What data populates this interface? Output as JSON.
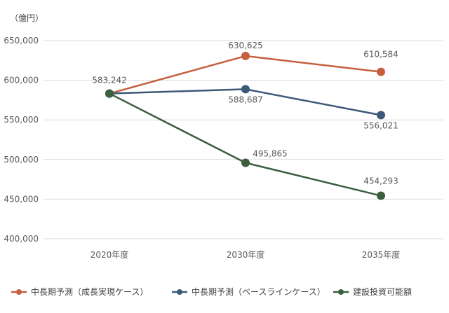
{
  "chart_data": {
    "type": "line",
    "unit_label": "（億円）",
    "categories": [
      "2020年度",
      "2030年度",
      "2035年度"
    ],
    "ylim": [
      400000,
      650000
    ],
    "yticks": [
      400000,
      450000,
      500000,
      550000,
      600000,
      650000
    ],
    "ytick_labels": [
      "400,000",
      "450,000",
      "500,000",
      "550,000",
      "600,000",
      "650,000"
    ],
    "grid": true,
    "legend_position": "bottom",
    "series": [
      {
        "name": "中長期予測（成長実現ケース）",
        "values": [
          583242,
          630625,
          610584
        ],
        "labels": [
          "583,242",
          "630,625",
          "610,584"
        ],
        "color": "#C65F3E"
      },
      {
        "name": "中長期予測（ベースラインケース）",
        "values": [
          583242,
          588687,
          556021
        ],
        "labels": [
          "",
          "588,687",
          "556,021"
        ],
        "color": "#3E5878"
      },
      {
        "name": "建設投資可能額",
        "values": [
          583242,
          495865,
          454293
        ],
        "labels": [
          "",
          "495,865",
          "454,293"
        ],
        "color": "#3A5E3F"
      }
    ]
  }
}
